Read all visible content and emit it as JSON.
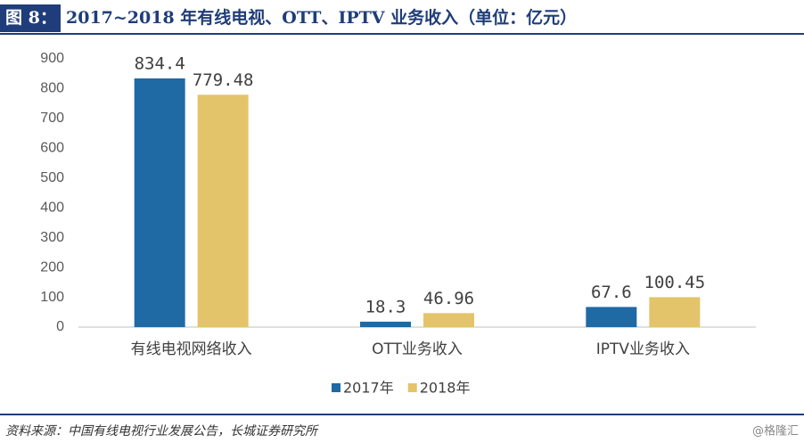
{
  "chart_data": {
    "type": "bar",
    "figure_label": "图 8：",
    "title": "2017~2018 年有线电视、OTT、IPTV 业务收入（单位：亿元）",
    "categories": [
      "有线电视网络收入",
      "OTT业务收入",
      "IPTV业务收入"
    ],
    "series": [
      {
        "name": "2017年",
        "color": "#1f6aa5",
        "values": [
          834.4,
          18.3,
          67.6
        ]
      },
      {
        "name": "2018年",
        "color": "#e4c46a",
        "values": [
          779.48,
          46.96,
          100.45
        ]
      }
    ],
    "ylim": [
      0,
      900
    ],
    "yticks": [
      0,
      100,
      200,
      300,
      400,
      500,
      600,
      700,
      800,
      900
    ],
    "grid": false,
    "source": "资料来源：中国有线电视行业发展公告，长城证券研究所",
    "watermark": "@格隆汇"
  }
}
